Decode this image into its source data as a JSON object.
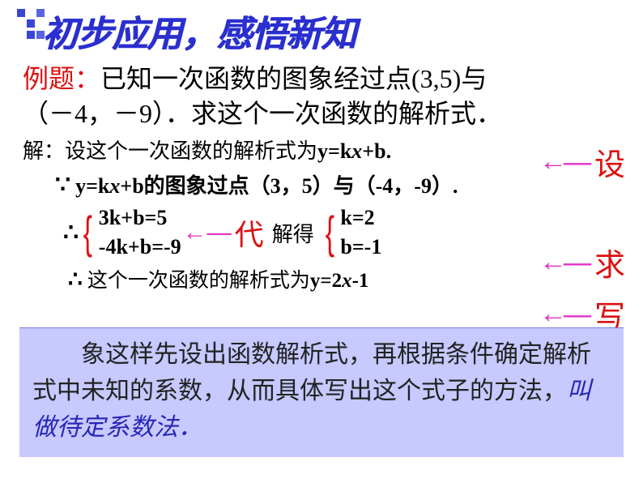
{
  "title": {
    "text": "初步应用，感悟新知",
    "deco_colors": [
      "#3a45d6",
      "#ffffff",
      "#5a63e0",
      "#ffffff",
      "#3a45d6",
      "#ffffff",
      "#ffffff",
      "#3a45d6",
      "#5a63e0"
    ]
  },
  "problem": {
    "prefix": "例题：",
    "body1": "已知一次函数的图象经过点(3,5)与",
    "body2": "（－4，－9）．求这个一次函数的解析式．"
  },
  "solution": {
    "line1_pre": "解：设这个一次函数的解析式为",
    "line1_eq": "y=k",
    "line1_eq_x": "x",
    "line1_eq_tail": "+b.",
    "because": "∵",
    "line2_pre": "y=k",
    "line2_x": "x",
    "line2_mid": "+b的图象过点（3，5）与（-4，-9）.",
    "therefore": "∴",
    "sys_eq1": "3k+b=5",
    "sys_eq2": "-4k+b=-9",
    "dai": "代",
    "jiede": "解得",
    "sol_eq1": "k=2",
    "sol_eq2": "b=-1",
    "concl_pre": "这个一次函数的解析式为",
    "concl_eq1": "y=2",
    "concl_x": "x",
    "concl_eq2": "-1"
  },
  "annot": {
    "she": "设",
    "qiu": "求",
    "xie": "写",
    "arrow": "←—"
  },
  "summary": {
    "pre": "象这样先设出函数解析式，再根据条件确定解析式中未知的系数，从而具体写出这个式子的方法，",
    "em": "叫做待定系数法．"
  },
  "colors": {
    "title_blue": "#2a2fcf",
    "red": "#d11",
    "arrow_pink": "#e530c9",
    "summary_bg": "#c7c9ff",
    "summary_blue": "#2626b5"
  }
}
